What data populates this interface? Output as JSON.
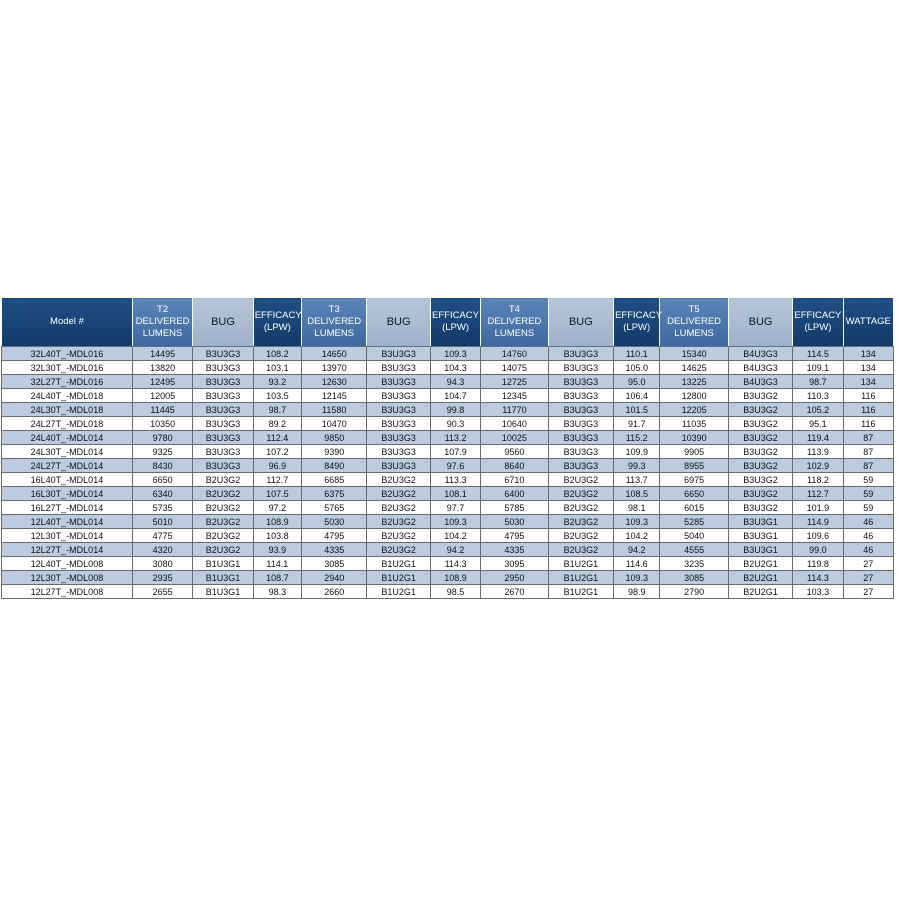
{
  "headers": [
    "Model #",
    "T2 DELIVERED LUMENS",
    "BUG",
    "EFFICACY (LPW)",
    "T3 DELIVERED LUMENS",
    "BUG",
    "EFFICACY (LPW)",
    "T4 DELIVERED LUMENS",
    "BUG",
    "EFFICACY (LPW)",
    "T5 DELIVERED LUMENS",
    "BUG",
    "EFFICACY (LPW)",
    "WATTAGE"
  ],
  "rows": [
    [
      "32L40T_-MDL016",
      "14495",
      "B3U3G3",
      "108.2",
      "14650",
      "B3U3G3",
      "109.3",
      "14760",
      "B3U3G3",
      "110.1",
      "15340",
      "B4U3G3",
      "114.5",
      "134"
    ],
    [
      "32L30T_-MDL016",
      "13820",
      "B3U3G3",
      "103.1",
      "13970",
      "B3U3G3",
      "104.3",
      "14075",
      "B3U3G3",
      "105.0",
      "14625",
      "B4U3G3",
      "109.1",
      "134"
    ],
    [
      "32L27T_-MDL016",
      "12495",
      "B3U3G3",
      "93.2",
      "12630",
      "B3U3G3",
      "94.3",
      "12725",
      "B3U3G3",
      "95.0",
      "13225",
      "B4U3G3",
      "98.7",
      "134"
    ],
    [
      "24L40T_-MDL018",
      "12005",
      "B3U3G3",
      "103.5",
      "12145",
      "B3U3G3",
      "104.7",
      "12345",
      "B3U3G3",
      "106.4",
      "12800",
      "B3U3G2",
      "110.3",
      "116"
    ],
    [
      "24L30T_-MDL018",
      "11445",
      "B3U3G3",
      "98.7",
      "11580",
      "B3U3G3",
      "99.8",
      "11770",
      "B3U3G3",
      "101.5",
      "12205",
      "B3U3G2",
      "105.2",
      "116"
    ],
    [
      "24L27T_-MDL018",
      "10350",
      "B3U3G3",
      "89.2",
      "10470",
      "B3U3G3",
      "90.3",
      "10640",
      "B3U3G3",
      "91.7",
      "11035",
      "B3U3G2",
      "95.1",
      "116"
    ],
    [
      "24L40T_-MDL014",
      "9780",
      "B3U3G3",
      "112.4",
      "9850",
      "B3U3G3",
      "113.2",
      "10025",
      "B3U3G3",
      "115.2",
      "10390",
      "B3U3G2",
      "119.4",
      "87"
    ],
    [
      "24L30T_-MDL014",
      "9325",
      "B3U3G3",
      "107.2",
      "9390",
      "B3U3G3",
      "107.9",
      "9560",
      "B3U3G3",
      "109.9",
      "9905",
      "B3U3G2",
      "113.9",
      "87"
    ],
    [
      "24L27T_-MDL014",
      "8430",
      "B3U3G3",
      "96.9",
      "8490",
      "B3U3G3",
      "97.6",
      "8640",
      "B3U3G3",
      "99.3",
      "8955",
      "B3U3G2",
      "102.9",
      "87"
    ],
    [
      "16L40T_-MDL014",
      "6650",
      "B2U3G2",
      "112.7",
      "6685",
      "B2U3G2",
      "113.3",
      "6710",
      "B2U3G2",
      "113.7",
      "6975",
      "B3U3G2",
      "118.2",
      "59"
    ],
    [
      "16L30T_-MDL014",
      "6340",
      "B2U3G2",
      "107.5",
      "6375",
      "B2U3G2",
      "108.1",
      "6400",
      "B2U3G2",
      "108.5",
      "6650",
      "B3U3G2",
      "112.7",
      "59"
    ],
    [
      "16L27T_-MDL014",
      "5735",
      "B2U3G2",
      "97.2",
      "5765",
      "B2U3G2",
      "97.7",
      "5785",
      "B2U3G2",
      "98.1",
      "6015",
      "B3U3G2",
      "101.9",
      "59"
    ],
    [
      "12L40T_-MDL014",
      "5010",
      "B2U3G2",
      "108.9",
      "5030",
      "B2U3G2",
      "109.3",
      "5030",
      "B2U3G2",
      "109.3",
      "5285",
      "B3U3G1",
      "114.9",
      "46"
    ],
    [
      "12L30T_-MDL014",
      "4775",
      "B2U3G2",
      "103.8",
      "4795",
      "B2U3G2",
      "104.2",
      "4795",
      "B2U3G2",
      "104.2",
      "5040",
      "B3U3G1",
      "109.6",
      "46"
    ],
    [
      "12L27T_-MDL014",
      "4320",
      "B2U3G2",
      "93.9",
      "4335",
      "B2U3G2",
      "94.2",
      "4335",
      "B2U3G2",
      "94.2",
      "4555",
      "B3U3G1",
      "99.0",
      "46"
    ],
    [
      "12L40T_-MDL008",
      "3080",
      "B1U3G1",
      "114.1",
      "3085",
      "B1U2G1",
      "114.3",
      "3095",
      "B1U2G1",
      "114.6",
      "3235",
      "B2U2G1",
      "119.8",
      "27"
    ],
    [
      "12L30T_-MDL008",
      "2935",
      "B1U3G1",
      "108.7",
      "2940",
      "B1U2G1",
      "108.9",
      "2950",
      "B1U2G1",
      "109.3",
      "3085",
      "B2U2G1",
      "114.3",
      "27"
    ],
    [
      "12L27T_-MDL008",
      "2655",
      "B1U3G1",
      "98.3",
      "2660",
      "B1U2G1",
      "98.5",
      "2670",
      "B1U2G1",
      "98.9",
      "2790",
      "B2U2G1",
      "103.3",
      "27"
    ]
  ],
  "colors": {
    "header_dark": "#1f4f86",
    "header_mid": "#5b84b8",
    "header_light": "#b7c5d8",
    "row_shade": "#bccbde",
    "row_plain": "#ffffff"
  }
}
